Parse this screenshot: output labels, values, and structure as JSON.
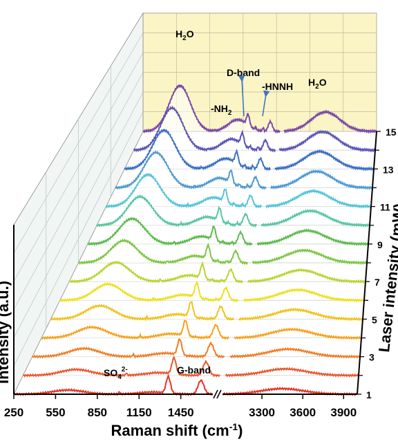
{
  "chart_data": {
    "type": "line",
    "style": "3d-waterfall",
    "xlabel": "Raman shift (cm",
    "xlabel_sup": "-1",
    "xlabel_close": ")",
    "ylabel": "Intensity (a.u.)",
    "zlabel": "Laser intensity (mW)",
    "x_axis_break": true,
    "x_tick_labels": [
      "250",
      "550",
      "850",
      "1150",
      "1450",
      "3300",
      "3600",
      "3900"
    ],
    "x_ticks": [
      250,
      550,
      850,
      1150,
      1450,
      3300,
      3600,
      3900
    ],
    "x_segment1_range": [
      250,
      1700
    ],
    "x_segment2_range": [
      3000,
      4000
    ],
    "z_tick_labels": [
      "1",
      "3",
      "5",
      "7",
      "9",
      "11",
      "13",
      "15"
    ],
    "z_values": [
      1,
      2,
      3,
      4,
      5,
      6,
      7,
      8,
      9,
      10,
      11,
      12,
      13,
      14,
      15
    ],
    "series_colors": [
      "#e53224",
      "#e8572c",
      "#ef7c25",
      "#f5a21c",
      "#f2c21a",
      "#ece11f",
      "#b8d432",
      "#7cc644",
      "#5cba4d",
      "#58c69e",
      "#56c4d8",
      "#4e9ad2",
      "#3c6fc2",
      "#5b55b4",
      "#7a4aa6"
    ],
    "back_wall_color": "#fbf5c6",
    "annotations": {
      "h2o_low": "H",
      "h2o_low_sub": "2",
      "h2o_low_tail": "O",
      "h2o_high": "H",
      "h2o_high_sub": "2",
      "h2o_high_tail": "O",
      "d_band": "D-band",
      "nh2": "-NH",
      "nh2_sub": "2",
      "hnnh": "-HNNH",
      "so4": "SO",
      "so4_sub": "4",
      "so4_sup": "2-",
      "g_band": "G-band"
    }
  }
}
